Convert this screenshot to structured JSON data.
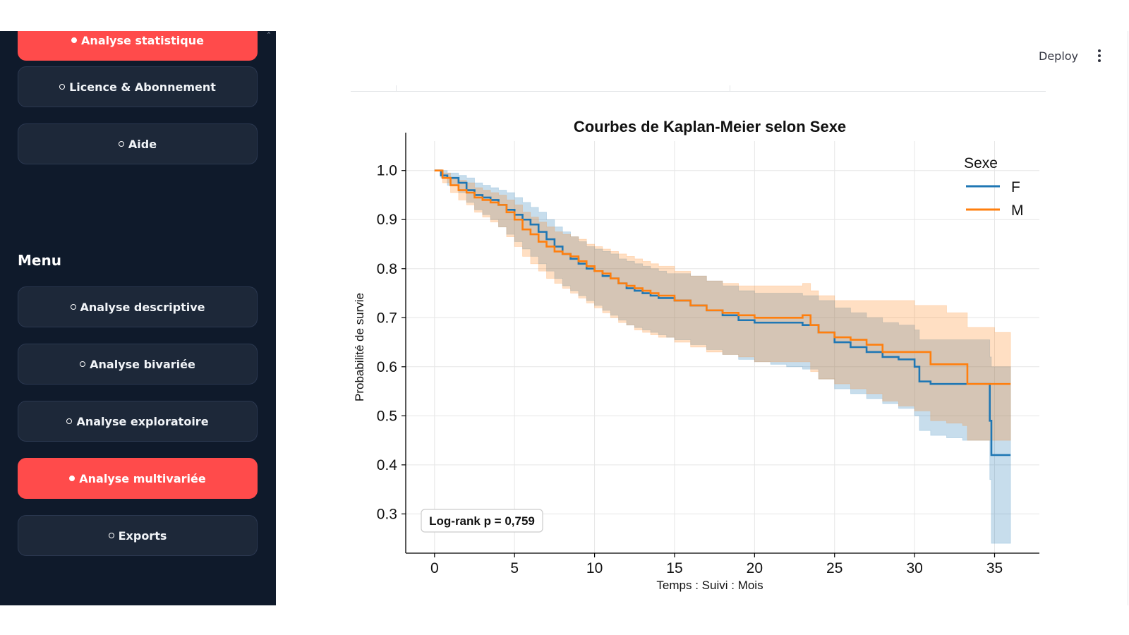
{
  "sidebar": {
    "collapse_glyph": "˄",
    "top_active_label": "Analyse statistique",
    "items_top": [
      "Licence & Abonnement",
      "Aide"
    ],
    "menu_title": "Menu",
    "menu_items": [
      {
        "label": "Analyse descriptive",
        "active": false
      },
      {
        "label": "Analyse bivariée",
        "active": false
      },
      {
        "label": "Analyse exploratoire",
        "active": false
      },
      {
        "label": "Analyse multivariée",
        "active": true
      },
      {
        "label": "Exports",
        "active": false
      }
    ],
    "accent_color": "#ff4b4b",
    "background_color": "#0f1a2b"
  },
  "header": {
    "deploy_label": "Deploy",
    "menu_icon": "kebab-vertical-icon"
  },
  "chart_data": {
    "type": "line",
    "title": "Courbes de Kaplan-Meier selon Sexe",
    "xlabel": "Temps : Suivi : Mois",
    "ylabel": "Probabilité de survie",
    "xlim": [
      -1.8,
      37.8
    ],
    "ylim": [
      0.22,
      1.06
    ],
    "x_ticks": [
      0,
      5,
      10,
      15,
      20,
      25,
      30,
      35
    ],
    "y_ticks": [
      0.3,
      0.4,
      0.5,
      0.6,
      0.7,
      0.8,
      0.9,
      1.0
    ],
    "x_tick_labels": [
      "0",
      "5",
      "10",
      "15",
      "20",
      "25",
      "30",
      "35"
    ],
    "y_tick_labels": [
      "0.3",
      "0.4",
      "0.5",
      "0.6",
      "0.7",
      "0.8",
      "0.9",
      "1.0"
    ],
    "grid": true,
    "legend_title": "Sexe",
    "legend_position": "top-right",
    "annotation": "Log-rank p = 0,759",
    "series": [
      {
        "name": "F",
        "color": "#1f77b4",
        "x": [
          0,
          0.4,
          0.8,
          1.5,
          2.0,
          2.5,
          3.0,
          3.5,
          4.0,
          4.5,
          5.0,
          5.5,
          6.0,
          6.5,
          7.0,
          7.5,
          8.0,
          8.5,
          9.0,
          9.5,
          10.0,
          10.5,
          11.0,
          11.5,
          12.0,
          12.5,
          13.0,
          13.5,
          14.0,
          14.5,
          15.0,
          16.0,
          17.0,
          18.0,
          19.0,
          20.0,
          21.0,
          22.0,
          23.0,
          24.0,
          25.0,
          26.0,
          27.0,
          28.0,
          29.0,
          30.0,
          30.3,
          31.0,
          32.0,
          33.0,
          34.0,
          34.5,
          34.7,
          34.8,
          35.0,
          36.0
        ],
        "y": [
          1.0,
          0.99,
          0.985,
          0.975,
          0.96,
          0.95,
          0.945,
          0.94,
          0.93,
          0.92,
          0.91,
          0.9,
          0.89,
          0.875,
          0.86,
          0.845,
          0.83,
          0.82,
          0.81,
          0.8,
          0.795,
          0.785,
          0.78,
          0.77,
          0.76,
          0.755,
          0.75,
          0.745,
          0.74,
          0.74,
          0.735,
          0.725,
          0.715,
          0.705,
          0.695,
          0.69,
          0.69,
          0.69,
          0.685,
          0.67,
          0.65,
          0.64,
          0.63,
          0.62,
          0.615,
          0.6,
          0.57,
          0.565,
          0.565,
          0.565,
          0.565,
          0.565,
          0.49,
          0.42,
          0.42,
          0.42
        ],
        "ci_lower": [
          1.0,
          0.985,
          0.97,
          0.955,
          0.935,
          0.92,
          0.91,
          0.9,
          0.885,
          0.87,
          0.855,
          0.84,
          0.825,
          0.81,
          0.795,
          0.78,
          0.765,
          0.755,
          0.745,
          0.735,
          0.725,
          0.715,
          0.705,
          0.695,
          0.685,
          0.68,
          0.675,
          0.67,
          0.665,
          0.66,
          0.655,
          0.645,
          0.635,
          0.625,
          0.615,
          0.61,
          0.605,
          0.6,
          0.595,
          0.575,
          0.555,
          0.545,
          0.535,
          0.525,
          0.515,
          0.5,
          0.47,
          0.46,
          0.455,
          0.45,
          0.45,
          0.45,
          0.37,
          0.24,
          0.24,
          0.24
        ],
        "ci_upper": [
          1.0,
          1.0,
          0.995,
          0.99,
          0.985,
          0.975,
          0.97,
          0.965,
          0.96,
          0.955,
          0.945,
          0.935,
          0.925,
          0.915,
          0.9,
          0.885,
          0.875,
          0.865,
          0.855,
          0.845,
          0.84,
          0.835,
          0.83,
          0.82,
          0.815,
          0.81,
          0.805,
          0.8,
          0.795,
          0.79,
          0.79,
          0.785,
          0.775,
          0.765,
          0.755,
          0.75,
          0.75,
          0.75,
          0.745,
          0.735,
          0.72,
          0.71,
          0.7,
          0.69,
          0.685,
          0.675,
          0.655,
          0.655,
          0.655,
          0.655,
          0.655,
          0.655,
          0.62,
          0.6,
          0.6,
          0.6
        ]
      },
      {
        "name": "M",
        "color": "#ff7f0e",
        "x": [
          0,
          0.5,
          1.0,
          1.5,
          2.0,
          2.5,
          3.0,
          3.5,
          4.0,
          4.5,
          5.0,
          5.5,
          6.0,
          6.5,
          7.0,
          7.5,
          8.0,
          8.5,
          9.0,
          9.5,
          10.0,
          10.5,
          11.0,
          11.5,
          12.0,
          12.5,
          13.0,
          13.5,
          14.0,
          15.0,
          16.0,
          17.0,
          18.0,
          19.0,
          20.0,
          21.0,
          22.0,
          23.0,
          23.5,
          24.0,
          25.0,
          26.0,
          27.0,
          28.0,
          29.0,
          30.0,
          31.0,
          32.0,
          33.0,
          33.3,
          34.0,
          35.0,
          36.0
        ],
        "y": [
          1.0,
          0.985,
          0.97,
          0.96,
          0.955,
          0.945,
          0.94,
          0.935,
          0.93,
          0.915,
          0.9,
          0.88,
          0.87,
          0.855,
          0.845,
          0.835,
          0.83,
          0.825,
          0.815,
          0.805,
          0.795,
          0.79,
          0.78,
          0.77,
          0.765,
          0.76,
          0.755,
          0.75,
          0.745,
          0.735,
          0.725,
          0.715,
          0.71,
          0.705,
          0.7,
          0.7,
          0.7,
          0.705,
          0.685,
          0.67,
          0.66,
          0.655,
          0.645,
          0.63,
          0.63,
          0.63,
          0.605,
          0.605,
          0.605,
          0.565,
          0.565,
          0.565,
          0.565
        ],
        "ci_lower": [
          1.0,
          0.975,
          0.955,
          0.94,
          0.93,
          0.915,
          0.905,
          0.895,
          0.885,
          0.865,
          0.845,
          0.825,
          0.81,
          0.795,
          0.78,
          0.77,
          0.76,
          0.75,
          0.74,
          0.73,
          0.72,
          0.71,
          0.7,
          0.69,
          0.685,
          0.675,
          0.67,
          0.665,
          0.66,
          0.65,
          0.64,
          0.63,
          0.625,
          0.62,
          0.61,
          0.61,
          0.61,
          0.61,
          0.59,
          0.575,
          0.565,
          0.555,
          0.545,
          0.53,
          0.52,
          0.51,
          0.49,
          0.485,
          0.48,
          0.45,
          0.45,
          0.45,
          0.45
        ],
        "ci_upper": [
          1.0,
          0.995,
          0.985,
          0.98,
          0.975,
          0.965,
          0.96,
          0.955,
          0.95,
          0.94,
          0.93,
          0.915,
          0.905,
          0.895,
          0.885,
          0.875,
          0.87,
          0.865,
          0.86,
          0.85,
          0.845,
          0.84,
          0.835,
          0.83,
          0.825,
          0.82,
          0.815,
          0.81,
          0.805,
          0.795,
          0.785,
          0.775,
          0.77,
          0.765,
          0.765,
          0.765,
          0.765,
          0.77,
          0.755,
          0.745,
          0.735,
          0.735,
          0.735,
          0.735,
          0.735,
          0.725,
          0.725,
          0.71,
          0.71,
          0.68,
          0.68,
          0.67,
          0.67
        ]
      }
    ]
  }
}
